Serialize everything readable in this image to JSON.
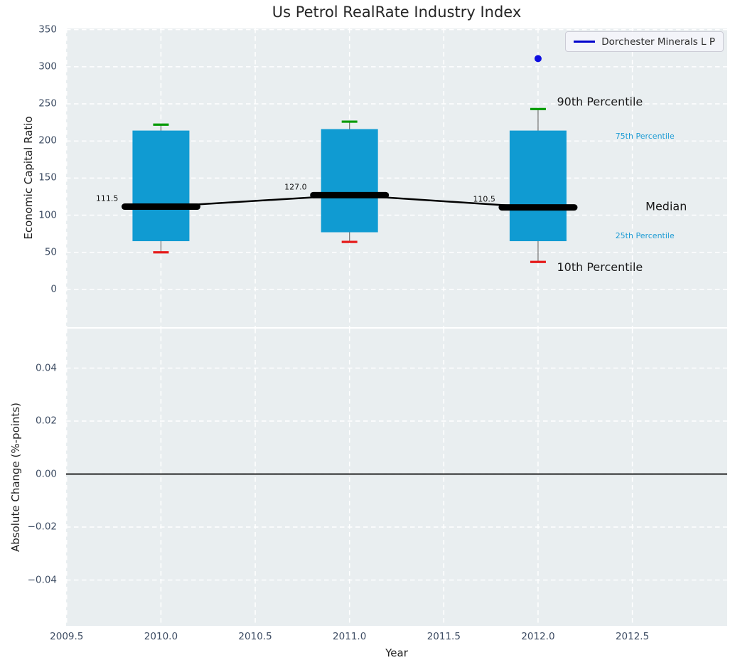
{
  "legend": {
    "label": "Dorchester Minerals L P"
  },
  "colors": {
    "axes_bg": "#e9eef0",
    "grid": "#ffffff",
    "box_fill": "#109bd2",
    "cap_top": "#009a00",
    "cap_bottom": "#e51c1c",
    "whisker": "#7a7a7a",
    "median_line": "#000000",
    "dot": "#0d0de0",
    "legend_line": "#0000cc",
    "annotation_blue": "#1e9cd4",
    "tick_text": "#3d4c63",
    "zero_line": "#000000"
  },
  "chart_data": [
    {
      "type": "boxplot",
      "title": "Us Petrol RealRate Industry Index",
      "ylabel": "Economic Capital Ratio",
      "xlabel": "",
      "grid": true,
      "legend_position": "upper right",
      "xlim": [
        2009.497,
        2013.003
      ],
      "ylim": [
        -50.9,
        351.6
      ],
      "xticks": [
        2009.5,
        2010.0,
        2010.5,
        2011.0,
        2011.5,
        2012.0,
        2012.5
      ],
      "xticklabels": [
        "2009.5",
        "2010.0",
        "2010.5",
        "2011.0",
        "2011.5",
        "2012.0",
        "2012.5"
      ],
      "show_xticklabels": false,
      "yticks": [
        0,
        50,
        100,
        150,
        200,
        250,
        300,
        350
      ],
      "yticklabels": [
        "0",
        "50",
        "100",
        "150",
        "200",
        "250",
        "300",
        "350"
      ],
      "boxes": [
        {
          "x": 2010,
          "p10": 50,
          "p25": 65,
          "median": 111.5,
          "p75": 214,
          "p90": 222,
          "median_label": "111.5"
        },
        {
          "x": 2011,
          "p10": 64,
          "p25": 77,
          "median": 127.0,
          "p75": 216,
          "p90": 226,
          "median_label": "127.0"
        },
        {
          "x": 2012,
          "p10": 37,
          "p25": 65,
          "median": 110.5,
          "p75": 214,
          "p90": 243,
          "median_label": "110.5"
        }
      ],
      "company_point": {
        "series": "Dorchester Minerals L P",
        "x": 2012,
        "y": 311
      },
      "annotations": [
        {
          "text": "90th Percentile",
          "x": 2012.1,
          "y": 252,
          "style": "large"
        },
        {
          "text": "75th Percentile",
          "x": 2012.41,
          "y": 206,
          "style": "small-blue"
        },
        {
          "text": "Median",
          "x": 2012.57,
          "y": 111,
          "style": "large"
        },
        {
          "text": "25th Percentile",
          "x": 2012.41,
          "y": 72,
          "style": "small-blue"
        },
        {
          "text": "10th Percentile",
          "x": 2012.1,
          "y": 29,
          "style": "large"
        }
      ]
    },
    {
      "type": "line",
      "title": "",
      "ylabel": "Absolute Change (%-points)",
      "xlabel": "Year",
      "grid": true,
      "xlim": [
        2009.497,
        2013.003
      ],
      "ylim": [
        -0.0573,
        0.0549
      ],
      "xticks": [
        2009.5,
        2010.0,
        2010.5,
        2011.0,
        2011.5,
        2012.0,
        2012.5
      ],
      "xticklabels": [
        "2009.5",
        "2010.0",
        "2010.5",
        "2011.0",
        "2011.5",
        "2012.0",
        "2012.5"
      ],
      "show_xticklabels": true,
      "yticks": [
        0.04,
        0.02,
        0.0,
        -0.02,
        -0.04
      ],
      "yticklabels": [
        "0.04",
        "0.02",
        "0.00",
        "−0.02",
        "−0.04"
      ],
      "zero_line": 0.0,
      "series": []
    }
  ]
}
